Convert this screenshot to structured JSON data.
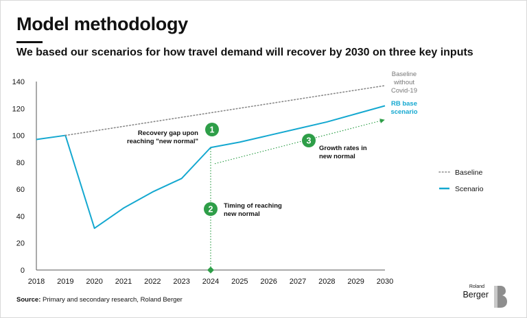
{
  "page": {
    "title": "Model methodology",
    "subtitle": "We based our scenarios for how travel demand will recover by 2030 on three key inputs",
    "source_label": "Source:",
    "source_text": "Primary and secondary research, Roland Berger",
    "logo_small": "Roland",
    "logo_big": "Berger"
  },
  "colors": {
    "scenario": "#14a8d0",
    "baseline": "#888888",
    "annotation": "#2e9e48"
  },
  "chart_data": {
    "type": "line",
    "x": [
      2018,
      2019,
      2020,
      2021,
      2022,
      2023,
      2024,
      2025,
      2026,
      2027,
      2028,
      2029,
      2030
    ],
    "ylim": [
      0,
      140
    ],
    "yticks": [
      0,
      20,
      40,
      60,
      80,
      100,
      120,
      140
    ],
    "grid": false,
    "legend_position": "right",
    "series": [
      {
        "name": "Scenario",
        "style": "solid",
        "x": [
          2018,
          2019,
          2020,
          2021,
          2022,
          2023,
          2024,
          2025,
          2026,
          2027,
          2028,
          2029,
          2030
        ],
        "values": [
          97,
          100,
          31,
          46,
          58,
          68,
          91,
          95,
          100,
          105,
          110,
          116,
          122
        ]
      },
      {
        "name": "Baseline",
        "style": "dotted",
        "x": [
          2019,
          2030
        ],
        "values": [
          100,
          137
        ]
      }
    ],
    "guides": {
      "timing": {
        "x": 2024,
        "from": 0,
        "to": 91
      },
      "growth": {
        "x": [
          2024,
          2030
        ],
        "values": [
          79,
          111
        ]
      }
    },
    "labels": {
      "baseline": [
        "Baseline",
        "without",
        "Covid-19"
      ],
      "scenario": [
        "RB base",
        "scenario"
      ]
    },
    "annotations": [
      {
        "number": "1",
        "lines": [
          "Recovery gap upon",
          "reaching \"new normal\""
        ]
      },
      {
        "number": "2",
        "lines": [
          "Timing of reaching",
          "new normal"
        ]
      },
      {
        "number": "3",
        "lines": [
          "Growth rates in",
          "new normal"
        ]
      }
    ]
  }
}
